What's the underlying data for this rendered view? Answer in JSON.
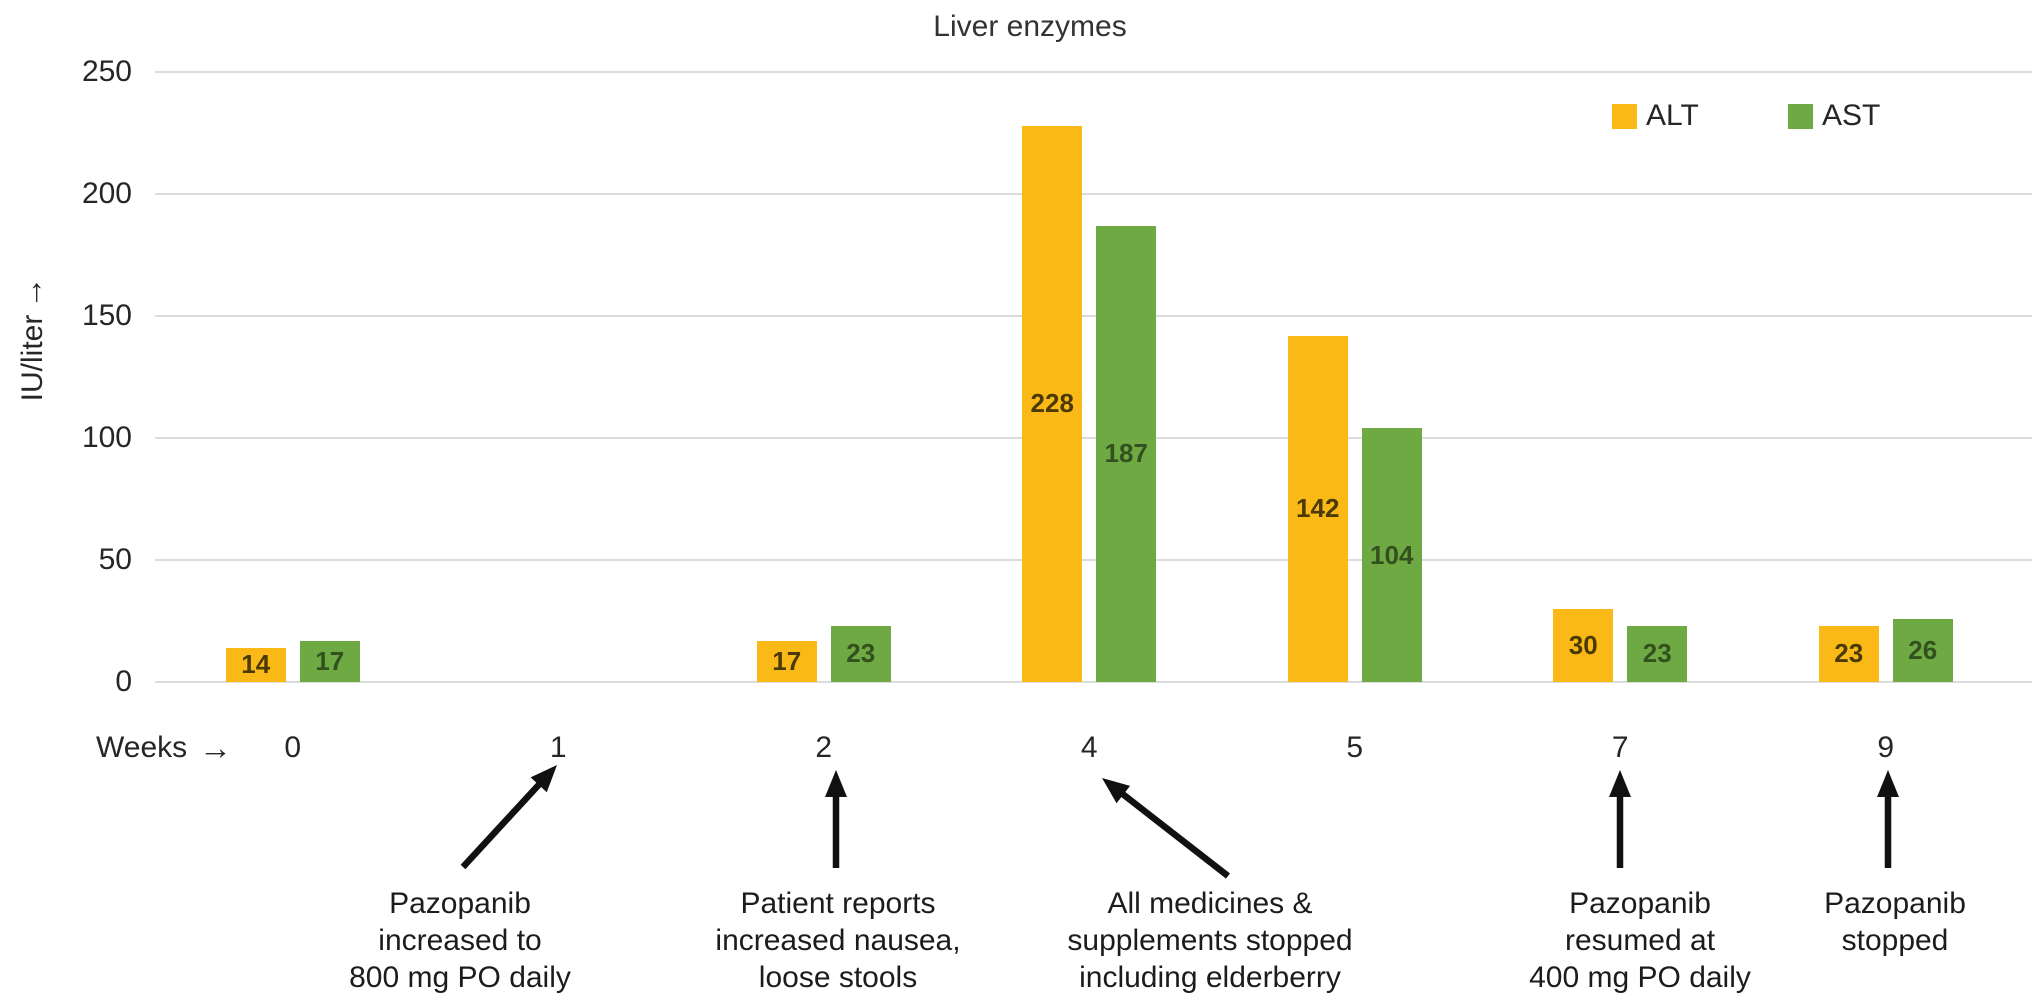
{
  "title": "Liver enzymes",
  "y_axis": {
    "label": "IU/liter",
    "ticks": [
      0,
      50,
      100,
      150,
      200,
      250
    ]
  },
  "x_axis": {
    "label": "Weeks",
    "categories": [
      "0",
      "1",
      "2",
      "4",
      "5",
      "7",
      "9"
    ]
  },
  "legend": {
    "alt_label": "ALT",
    "ast_label": "AST",
    "alt_color": "#FBB917",
    "ast_color": "#6FA943"
  },
  "chart_data": {
    "type": "bar",
    "title": "Liver enzymes",
    "ylabel": "IU/liter",
    "xlabel": "Weeks",
    "ylim": [
      0,
      250
    ],
    "grid": true,
    "legend_position": "top-right",
    "categories": [
      "0",
      "1",
      "2",
      "4",
      "5",
      "7",
      "9"
    ],
    "series": [
      {
        "name": "ALT",
        "color": "#FBB917",
        "label_color": "#4a3a06",
        "values": [
          14,
          null,
          17,
          228,
          142,
          30,
          23
        ]
      },
      {
        "name": "AST",
        "color": "#6FA943",
        "label_color": "#33511f",
        "values": [
          17,
          null,
          23,
          187,
          104,
          23,
          26
        ]
      }
    ]
  },
  "annotations": [
    {
      "week": "1",
      "lines": [
        "Pazopanib",
        "increased to",
        "800 mg PO daily"
      ]
    },
    {
      "week": "2",
      "lines": [
        "Patient reports",
        "increased nausea,",
        "loose stools"
      ]
    },
    {
      "week": "4",
      "lines": [
        "All medicines &",
        "supplements stopped",
        "including elderberry"
      ]
    },
    {
      "week": "7",
      "lines": [
        "Pazopanib",
        "resumed at",
        "400 mg PO daily"
      ]
    },
    {
      "week": "9",
      "lines": [
        "Pazopanib",
        "stopped"
      ]
    }
  ]
}
